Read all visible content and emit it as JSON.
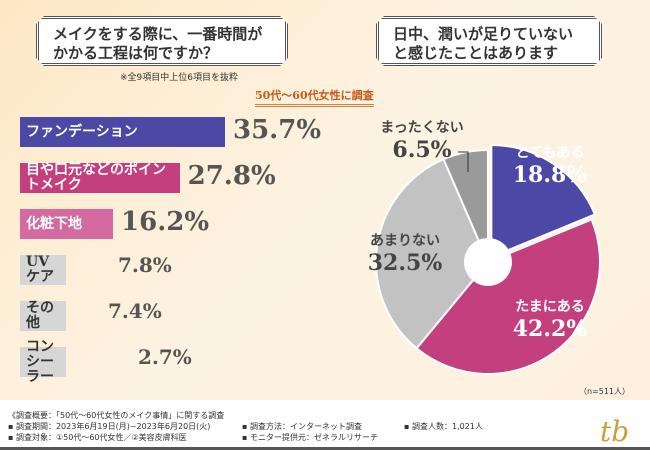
{
  "header": {
    "question1": "メイクをする際に、一番時間がかかる工程は何ですか？",
    "question2": "日中、潤いが足りていないと感じたことはありますか？",
    "note": "※全9項目中上位6項目を抜粋",
    "subtitle": "50代～60代女性に調査"
  },
  "chart_data": [
    {
      "type": "bar",
      "orientation": "horizontal",
      "categories": [
        "ファンデーション",
        "目や口元などのポイントメイク",
        "化粧下地",
        "UVケア",
        "その他",
        "コンシーラー"
      ],
      "values": [
        35.7,
        27.8,
        16.2,
        7.8,
        7.4,
        2.7
      ],
      "value_labels": [
        "35.7%",
        "27.8%",
        "16.2%",
        "7.8%",
        "7.4%",
        "2.7%"
      ],
      "colors": [
        "#4b48a6",
        "#c43f7e",
        "#d46aa1",
        "#d6d6d6",
        "#d6d6d6",
        "#d6d6d6"
      ]
    },
    {
      "type": "pie",
      "donut": true,
      "categories": [
        "とてもある",
        "たまにある",
        "あまりない",
        "まったくない"
      ],
      "values": [
        18.8,
        42.2,
        32.5,
        6.5
      ],
      "value_labels": [
        "18.8%",
        "42.2%",
        "32.5%",
        "6.5%"
      ],
      "colors": [
        "#4b48a6",
        "#c43f7e",
        "#c2c2c2",
        "#9a9a9a"
      ],
      "n_label": "（n=511人）"
    }
  ],
  "footer": {
    "overview": "《調査概要：「50代～60代女性のメイク事情」に関する調査",
    "period": "▪ 調査期間：2023年6月19日(月)~2023年6月20日(火)",
    "method": "▪ 調査方法：インターネット調査",
    "count": "▪ 調査人数：1,021人",
    "target": "▪ 調査対象：①50代～60代女性／②美容皮膚科医",
    "provider": "▪ モニター提供元：ゼネラルリサーチ",
    "logo": "tb"
  }
}
